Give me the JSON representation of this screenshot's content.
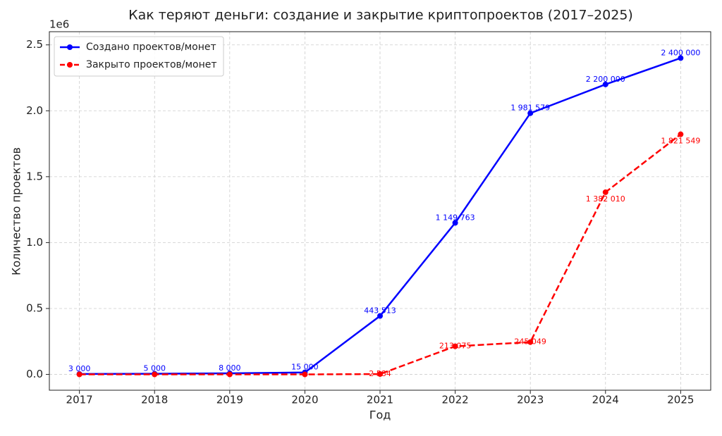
{
  "chart_data": {
    "type": "line",
    "title": "Как теряют деньги: создание и закрытие криптопроектов (2017–2025)",
    "x_label": "Год",
    "y_label": "Количество проектов",
    "y_offset_label": "1e6",
    "x": [
      2017,
      2018,
      2019,
      2020,
      2021,
      2022,
      2023,
      2024,
      2025
    ],
    "series": [
      {
        "name": "Создано проектов/монет",
        "color": "#0000ff",
        "dashed": false,
        "values": [
          3000,
          5000,
          8000,
          15000,
          443513,
          1149763,
          1981579,
          2200000,
          2400000
        ],
        "value_labels": [
          "3 000",
          "5 000",
          "8 000",
          "15 000",
          "443 513",
          "1 149 763",
          "1 981 579",
          "2 200 000",
          "2 400 000"
        ]
      },
      {
        "name": "Закрыто проектов/монет",
        "color": "#ff0000",
        "dashed": true,
        "values": [
          0,
          0,
          0,
          0,
          2584,
          213075,
          245049,
          1382010,
          1821549
        ],
        "value_labels": [
          null,
          null,
          null,
          null,
          "2 584",
          "213 075",
          "245 049",
          "1 382 010",
          "1 821 549"
        ]
      }
    ],
    "xlim": [
      2016.6,
      2025.4
    ],
    "xticks": [
      2017,
      2018,
      2019,
      2020,
      2021,
      2022,
      2023,
      2024,
      2025
    ],
    "ylim": [
      -120000,
      2600000
    ],
    "yticks": [
      {
        "value": 0,
        "label": "0.0"
      },
      {
        "value": 500000,
        "label": "0.5"
      },
      {
        "value": 1000000,
        "label": "1.0"
      },
      {
        "value": 1500000,
        "label": "1.5"
      },
      {
        "value": 2000000,
        "label": "2.0"
      },
      {
        "value": 2500000,
        "label": "2.5"
      }
    ],
    "grid": true,
    "legend": "upper-left"
  }
}
